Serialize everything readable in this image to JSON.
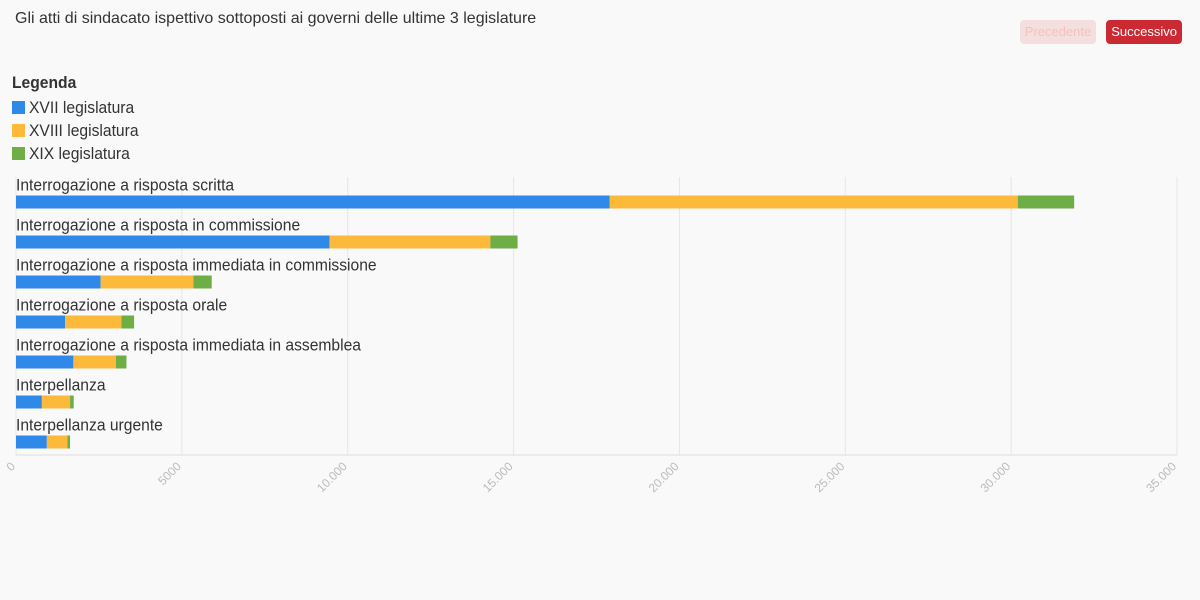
{
  "header": {
    "title": "Gli atti di sindacato ispettivo sottoposti ai governi delle ultime 3 legislature",
    "prev_label": "Precedente",
    "next_label": "Successivo"
  },
  "legend": {
    "title": "Legenda"
  },
  "colors": {
    "xvii": "#2e89e8",
    "xviii": "#fdb93a",
    "xix": "#6fad47",
    "grid": "#e6e6e6",
    "tick": "#bbbbbb"
  },
  "chart_data": {
    "type": "bar",
    "orientation": "horizontal",
    "stacked": true,
    "categories": [
      "Interrogazione a risposta scritta",
      "Interrogazione a risposta in commissione",
      "Interrogazione a risposta immediata in commissione",
      "Interrogazione a risposta orale",
      "Interrogazione a risposta immediata in assemblea",
      "Interpellanza",
      "Interpellanza urgente"
    ],
    "series": [
      {
        "name": "XVII legislatura",
        "color": "#2e89e8",
        "values": [
          17900,
          9450,
          2550,
          1480,
          1730,
          780,
          930
        ]
      },
      {
        "name": "XVIII legislatura",
        "color": "#fdb93a",
        "values": [
          12300,
          4850,
          2800,
          1700,
          1280,
          850,
          620
        ]
      },
      {
        "name": "XIX legislatura",
        "color": "#6fad47",
        "values": [
          1700,
          820,
          550,
          380,
          320,
          110,
          80
        ]
      }
    ],
    "xlim": [
      0,
      35000
    ],
    "x_ticks": [
      "0",
      "5000",
      "10.000",
      "15.000",
      "20.000",
      "25.000",
      "30.000",
      "35.000"
    ],
    "x_tick_values": [
      0,
      5000,
      10000,
      15000,
      20000,
      25000,
      30000,
      35000
    ],
    "grid": true,
    "legend_position": "top-left"
  }
}
